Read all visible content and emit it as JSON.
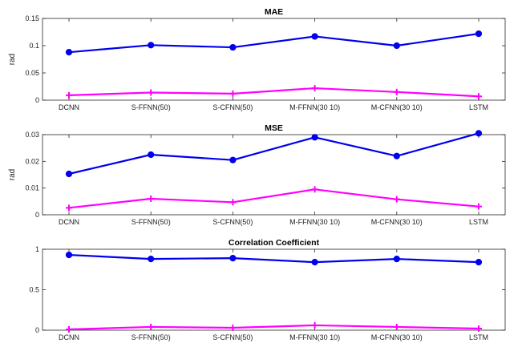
{
  "chart_data": [
    {
      "type": "line",
      "title": "MAE",
      "ylabel": "rad",
      "xlabel": "",
      "categories": [
        "DCNN",
        "S-FFNN(50)",
        "S-CFNN(50)",
        "M-FFNN(30 10)",
        "M-CFNN(30 10)",
        "LSTM"
      ],
      "ylim": [
        0,
        0.15
      ],
      "yticks": [
        0,
        0.05,
        0.1,
        0.15
      ],
      "ytick_labels": [
        "0",
        "0.05",
        "0.1",
        "0.15"
      ],
      "grid": false,
      "series": [
        {
          "color": "#0000ee",
          "marker": "circle",
          "values": [
            0.088,
            0.101,
            0.097,
            0.117,
            0.1,
            0.122
          ]
        },
        {
          "color": "#ff00ff",
          "marker": "plus",
          "values": [
            0.009,
            0.014,
            0.012,
            0.022,
            0.015,
            0.007
          ]
        }
      ]
    },
    {
      "type": "line",
      "title": "MSE",
      "ylabel": "rad",
      "xlabel": "",
      "categories": [
        "DCNN",
        "S-FFNN(50)",
        "S-CFNN(50)",
        "M-FFNN(30 10)",
        "M-CFNN(30 10)",
        "LSTM"
      ],
      "ylim": [
        0,
        0.03
      ],
      "yticks": [
        0,
        0.01,
        0.02,
        0.03
      ],
      "ytick_labels": [
        "0",
        "0.01",
        "0.02",
        "0.03"
      ],
      "grid": false,
      "series": [
        {
          "color": "#0000ee",
          "marker": "circle",
          "values": [
            0.0153,
            0.0225,
            0.0205,
            0.029,
            0.022,
            0.0305
          ]
        },
        {
          "color": "#ff00ff",
          "marker": "plus",
          "values": [
            0.0026,
            0.006,
            0.0047,
            0.0095,
            0.0058,
            0.0031
          ]
        }
      ]
    },
    {
      "type": "line",
      "title": "Correlation Coefficient",
      "ylabel": "",
      "xlabel": "",
      "categories": [
        "DCNN",
        "S-FFNN(50)",
        "S-CFNN(50)",
        "M-FFNN(30 10)",
        "M-CFNN(30 10)",
        "LSTM"
      ],
      "ylim": [
        0,
        1
      ],
      "yticks": [
        0,
        0.5,
        1
      ],
      "ytick_labels": [
        "0",
        "0.5",
        "1"
      ],
      "grid": false,
      "series": [
        {
          "color": "#0000ee",
          "marker": "circle",
          "values": [
            0.93,
            0.88,
            0.89,
            0.84,
            0.88,
            0.84
          ]
        },
        {
          "color": "#ff00ff",
          "marker": "plus",
          "values": [
            0.01,
            0.04,
            0.03,
            0.06,
            0.04,
            0.02
          ]
        }
      ]
    }
  ]
}
